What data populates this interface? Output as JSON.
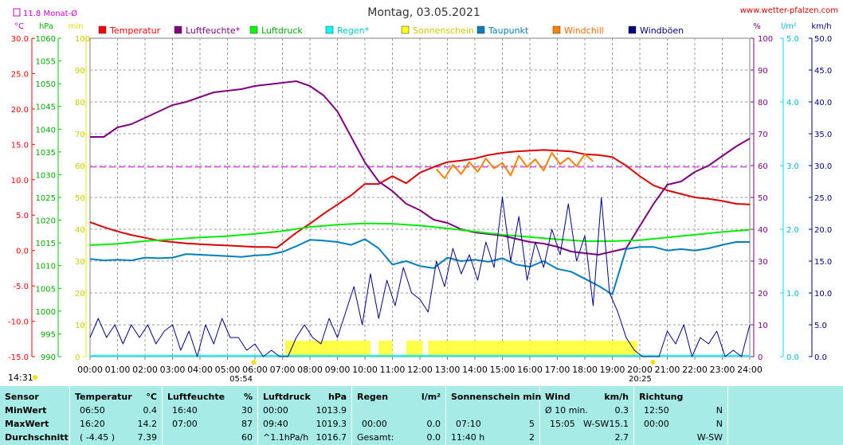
{
  "header": {
    "title": "Montag, 03.05.2021",
    "site": "www.wetter-pfalzen.com",
    "month_avg": "11.8 Monat-Ø"
  },
  "chart_data": {
    "type": "line",
    "title": "Montag, 03.05.2021",
    "x_ticks": [
      "00:00",
      "01:00",
      "02:00",
      "03:00",
      "04:00",
      "05:00",
      "06:00",
      "07:00",
      "08:00",
      "09:00",
      "10:00",
      "11:00",
      "12:00",
      "13:00",
      "14:00",
      "15:00",
      "16:00",
      "17:00",
      "18:00",
      "19:00",
      "20:00",
      "21:00",
      "22:00",
      "23:00",
      "24:00"
    ],
    "xlim": [
      0,
      24
    ],
    "sunrise": "05:54",
    "sunset": "20:25",
    "footer_time": "14:31",
    "axes": {
      "temp": {
        "unit": "°C",
        "ylim": [
          -15,
          30
        ],
        "ticks": [
          "30.0",
          "25.0",
          "20.0",
          "15.0",
          "10.0",
          "5.0",
          "0.0",
          "-5.0",
          "-10.0",
          "-15.0"
        ],
        "color": "#ff0000"
      },
      "pressure": {
        "unit": "hPa",
        "ylim": [
          990,
          1060
        ],
        "ticks": [
          "1060",
          "1055",
          "1050",
          "1045",
          "1040",
          "1035",
          "1030",
          "1025",
          "1020",
          "1015",
          "1010",
          "1005",
          "1000",
          "995",
          "990"
        ],
        "color": "#00cc00"
      },
      "sun_min": {
        "unit": "min",
        "ylim": [
          0,
          100
        ],
        "ticks": [
          "100",
          "90",
          "80",
          "70",
          "60",
          "50",
          "40",
          "30",
          "20",
          "10",
          "0"
        ],
        "color": "#dddd00"
      },
      "humidity": {
        "unit": "%",
        "ylim": [
          0,
          100
        ],
        "ticks": [
          "100",
          "90",
          "80",
          "70",
          "60",
          "50",
          "40",
          "30",
          "20",
          "10",
          "0"
        ],
        "color": "#800080"
      },
      "rain": {
        "unit": "l/m²",
        "ylim": [
          0,
          5
        ],
        "ticks": [
          "5.0",
          "4.0",
          "3.0",
          "2.0",
          "1.0",
          "0.0"
        ],
        "color": "#00bbdd"
      },
      "wind": {
        "unit": "km/h",
        "ylim": [
          0,
          50
        ],
        "ticks": [
          "50.0",
          "45.0",
          "40.0",
          "35.0",
          "30.0",
          "25.0",
          "20.0",
          "15.0",
          "10.0",
          "5.0",
          "0.0"
        ],
        "color": "#000080"
      }
    },
    "month_avg_temp": 11.8,
    "legend": [
      {
        "name": "Temperatur",
        "color": "#ff0000",
        "text_color": "#ff0000"
      },
      {
        "name": "Luftfeuchte*",
        "color": "#800080",
        "text_color": "#800080"
      },
      {
        "name": "Luftdruck",
        "color": "#00ff00",
        "text_color": "#00aa00"
      },
      {
        "name": "Regen*",
        "color": "#00ffff",
        "text_color": "#00cccc"
      },
      {
        "name": "Sonnenschein",
        "color": "#ffff00",
        "text_color": "#cccc00"
      },
      {
        "name": "Taupunkt",
        "color": "#0080c0",
        "text_color": "#0080c0"
      },
      {
        "name": "Windchill",
        "color": "#ff8000",
        "text_color": "#ff6600"
      },
      {
        "name": "Windböen",
        "color": "#000080",
        "text_color": "#000080"
      }
    ],
    "series": [
      {
        "name": "Temperatur",
        "axis": "temp",
        "color": "#dd0000",
        "x": [
          0,
          0.5,
          1,
          1.5,
          2,
          2.5,
          3,
          3.5,
          4,
          4.5,
          5,
          5.5,
          6,
          6.5,
          6.8,
          7,
          7.5,
          8,
          8.5,
          9,
          9.5,
          10,
          10.5,
          11,
          11.5,
          12,
          12.5,
          13,
          13.5,
          14,
          14.5,
          15,
          15.5,
          16,
          16.5,
          17,
          17.5,
          18,
          18.5,
          19,
          19.5,
          20,
          20.5,
          21,
          21.5,
          22,
          22.5,
          23,
          23.5,
          24
        ],
        "y": [
          4,
          3.3,
          2.7,
          2.2,
          1.8,
          1.4,
          1.2,
          1.0,
          0.9,
          0.8,
          0.7,
          0.6,
          0.5,
          0.5,
          0.4,
          1,
          2.5,
          3.8,
          5.2,
          6.5,
          7.8,
          9.4,
          9.4,
          10.5,
          9.5,
          11,
          11.8,
          12.5,
          12.7,
          13.0,
          13.5,
          13.8,
          14.0,
          14.1,
          14.2,
          14.1,
          14.0,
          13.6,
          13.5,
          13.2,
          12.0,
          10.5,
          9.2,
          8.5,
          8.0,
          7.5,
          7.3,
          7.0,
          6.6,
          6.5
        ]
      },
      {
        "name": "Luftfeuchte",
        "axis": "humidity",
        "color": "#800080",
        "x": [
          0,
          0.5,
          1,
          1.5,
          2,
          2.5,
          3,
          3.5,
          4,
          4.5,
          5,
          5.5,
          6,
          6.5,
          7,
          7.5,
          8,
          8.5,
          9,
          9.5,
          10,
          10.5,
          11,
          11.5,
          12,
          12.5,
          13,
          13.5,
          14,
          14.5,
          15,
          15.5,
          16,
          16.5,
          17,
          17.5,
          18,
          18.5,
          19,
          19.5,
          20,
          20.5,
          21,
          21.5,
          22,
          22.5,
          23,
          23.5,
          24
        ],
        "y": [
          69,
          69,
          72,
          73,
          75,
          77,
          79,
          80,
          81.5,
          83,
          83.5,
          84,
          85,
          85.5,
          86,
          86.5,
          85,
          82,
          77,
          69,
          61,
          55,
          52,
          48,
          46,
          43,
          42,
          40,
          39,
          38.5,
          38,
          37,
          36,
          35.5,
          34.5,
          33,
          32.5,
          32,
          33,
          34,
          41,
          48,
          54,
          55,
          58,
          60,
          63,
          66,
          68.5
        ]
      },
      {
        "name": "Luftdruck",
        "axis": "pressure",
        "color": "#00ee00",
        "x": [
          0,
          1,
          2,
          3,
          4,
          5,
          6,
          7,
          8,
          9,
          10,
          11,
          12,
          13,
          14,
          15,
          16,
          17,
          18,
          19,
          20,
          21,
          22,
          23,
          24
        ],
        "y": [
          1014.5,
          1014.8,
          1015.4,
          1015.8,
          1016.2,
          1016.5,
          1017,
          1017.6,
          1018.5,
          1019,
          1019.3,
          1019.2,
          1018.8,
          1018.2,
          1017.5,
          1016.8,
          1016.3,
          1015.8,
          1015.4,
          1015.4,
          1015.6,
          1016.2,
          1016.8,
          1017.4,
          1017.9
        ]
      },
      {
        "name": "Taupunkt",
        "axis": "temp",
        "color": "#0080c0",
        "x": [
          0,
          0.5,
          1,
          1.5,
          2,
          2.5,
          3,
          3.5,
          4,
          4.5,
          5,
          5.5,
          6,
          6.5,
          7,
          7.5,
          8,
          8.5,
          9,
          9.5,
          10,
          10.5,
          11,
          11.5,
          12,
          12.5,
          13,
          13.5,
          14,
          14.5,
          15,
          15.5,
          16,
          16.5,
          17,
          17.5,
          18,
          18.5,
          19,
          19.5,
          20,
          20.5,
          21,
          21.5,
          22,
          22.5,
          23,
          23.5,
          24
        ],
        "y": [
          -1.2,
          -1.4,
          -1.3,
          -1.4,
          -1.0,
          -1.1,
          -1.0,
          -0.5,
          -0.6,
          -0.7,
          -0.8,
          -0.9,
          -0.7,
          -0.6,
          -0.2,
          0.6,
          1.5,
          1.4,
          1.2,
          0.8,
          1.6,
          0.3,
          -2.0,
          -1.5,
          -2.2,
          -2.5,
          -1.0,
          -1.5,
          -1.3,
          -1.6,
          -1.1,
          -2.0,
          -2.3,
          -1.5,
          -2.6,
          -3.0,
          -4.0,
          -5.0,
          -6.2,
          0.2,
          0.5,
          0.5,
          0.0,
          0.2,
          0.0,
          0.3,
          0.8,
          1.2,
          1.2
        ]
      },
      {
        "name": "Windchill",
        "axis": "temp",
        "color": "#ff8000",
        "x": [
          12.6,
          12.9,
          13.2,
          13.5,
          13.8,
          14.1,
          14.4,
          14.7,
          15.0,
          15.3,
          15.6,
          15.9,
          16.2,
          16.5,
          16.8,
          17.1,
          17.4,
          17.7,
          18.0,
          18.3
        ],
        "y": [
          11.5,
          10.2,
          12.1,
          10.8,
          12.5,
          11.1,
          13.0,
          11.6,
          12.4,
          10.6,
          13.4,
          11.8,
          12.9,
          11.3,
          13.8,
          12.2,
          13.1,
          11.9,
          13.6,
          12.6
        ]
      },
      {
        "name": "Windböen",
        "axis": "wind",
        "color": "#00008c",
        "x": [
          0,
          0.3,
          0.6,
          0.9,
          1.2,
          1.5,
          1.8,
          2.1,
          2.4,
          2.7,
          3,
          3.3,
          3.6,
          3.9,
          4.2,
          4.5,
          4.8,
          5.1,
          5.4,
          5.7,
          6,
          6.3,
          6.6,
          6.9,
          7.2,
          7.5,
          7.8,
          8.1,
          8.4,
          8.7,
          9,
          9.3,
          9.6,
          9.9,
          10.2,
          10.5,
          10.8,
          11.1,
          11.4,
          11.7,
          12,
          12.3,
          12.6,
          12.9,
          13.2,
          13.5,
          13.8,
          14.1,
          14.4,
          14.7,
          15,
          15.3,
          15.6,
          15.9,
          16.2,
          16.5,
          16.8,
          17.1,
          17.4,
          17.7,
          18,
          18.3,
          18.6,
          18.9,
          19.2,
          19.5,
          19.8,
          20.1,
          20.4,
          20.7,
          21,
          21.3,
          21.6,
          21.9,
          22.2,
          22.5,
          22.8,
          23.1,
          23.4,
          23.7,
          24
        ],
        "y": [
          3,
          6,
          3,
          5,
          2,
          5,
          3,
          5,
          2,
          4,
          5,
          1,
          4,
          0,
          5,
          2,
          6,
          3,
          3,
          1,
          2,
          0,
          1,
          0,
          0,
          3,
          5,
          3,
          2,
          6,
          3,
          7,
          11,
          5,
          13,
          6,
          12,
          8,
          14,
          10,
          9,
          7,
          15,
          11,
          17,
          13,
          16,
          12,
          18,
          14,
          25,
          15,
          22,
          12,
          18,
          14,
          20,
          16,
          24,
          15,
          19,
          8,
          25,
          10,
          7,
          3,
          1,
          0,
          0,
          0,
          4,
          2,
          5,
          0,
          3,
          2,
          4,
          0,
          1,
          0,
          5
        ]
      }
    ],
    "sunshine_bars": [
      [
        7.1,
        10.2
      ],
      [
        10.5,
        11.0
      ],
      [
        11.5,
        12.1
      ],
      [
        12.3,
        19.9
      ]
    ],
    "rain_total": 0.0
  },
  "stats": {
    "sensor": {
      "title": "Sensor",
      "rows": [
        "MinWert",
        "MaxWert",
        "Durchschnitt"
      ]
    },
    "temperature": {
      "title": "Temperatur",
      "unit": "°C",
      "rows": [
        [
          "06:50",
          "0.4"
        ],
        [
          "16:20",
          "14.2"
        ],
        [
          "( -4.45 )",
          "7.39"
        ]
      ]
    },
    "humidity": {
      "title": "Luftfeuchte",
      "unit": "%",
      "rows": [
        [
          "16:40",
          "30"
        ],
        [
          "07:00",
          "87"
        ],
        [
          "",
          "60"
        ]
      ]
    },
    "pressure": {
      "title": "Luftdruck",
      "unit": "hPa",
      "rows": [
        [
          "00:00",
          "1013.9"
        ],
        [
          "09:40",
          "1019.3"
        ],
        [
          "^1.1hPa/h",
          "1016.7"
        ]
      ]
    },
    "rain": {
      "title": "Regen",
      "unit": "l/m²",
      "rows": [
        [
          "",
          ""
        ],
        [
          "00:00",
          "0.0"
        ],
        [
          "Gesamt:",
          "0.0"
        ]
      ]
    },
    "sunshine": {
      "title": "Sonnenschein min",
      "rows": [
        [
          "",
          ""
        ],
        [
          "07:10",
          "5"
        ],
        [
          "11:40 h",
          "2"
        ]
      ]
    },
    "wind": {
      "title": "Wind",
      "unit": "km/h",
      "rows": [
        [
          "Ø 10 min.",
          "",
          "0.3"
        ],
        [
          "15:05",
          "W-SW",
          "15.1"
        ],
        [
          "",
          "",
          "2.7"
        ]
      ]
    },
    "direction": {
      "title": "Richtung",
      "rows": [
        [
          "12:50",
          "N"
        ],
        [
          "00:00",
          "N"
        ],
        [
          "",
          "W-SW"
        ]
      ]
    }
  }
}
